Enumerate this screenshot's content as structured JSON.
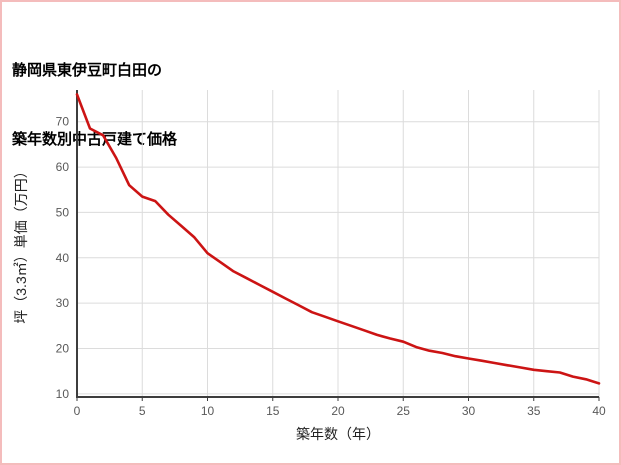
{
  "page": {
    "title_line1": "静岡県東伊豆町白田の",
    "title_line2": "築年数別中古戸建て価格"
  },
  "chart_data": {
    "type": "line",
    "title": "静岡県東伊豆町白田の築年数別中古戸建て価格",
    "xlabel": "築年数（年）",
    "ylabel": "坪（3.3㎡）単価（万円）",
    "x": [
      0,
      1,
      2,
      3,
      4,
      5,
      6,
      7,
      8,
      9,
      10,
      11,
      12,
      13,
      14,
      15,
      16,
      17,
      18,
      19,
      20,
      21,
      22,
      23,
      24,
      25,
      26,
      27,
      28,
      29,
      30,
      31,
      32,
      33,
      34,
      35,
      36,
      37,
      38,
      39,
      40
    ],
    "values": [
      76,
      68.5,
      67,
      62,
      56,
      53.5,
      52.5,
      49.5,
      47,
      44.5,
      41,
      39,
      37,
      35.5,
      34,
      32.5,
      31,
      29.5,
      28,
      27,
      26,
      25,
      24,
      23,
      22.2,
      21.5,
      20.3,
      19.5,
      19,
      18.3,
      17.8,
      17.3,
      16.8,
      16.3,
      15.8,
      15.3,
      15,
      14.7,
      13.8,
      13.2,
      12.3
    ],
    "xlim": [
      0,
      40
    ],
    "ylim": [
      9.3,
      77
    ],
    "xticks": [
      0,
      5,
      10,
      15,
      20,
      25,
      30,
      35,
      40
    ],
    "yticks": [
      10,
      20,
      30,
      40,
      50,
      60,
      70
    ],
    "grid": true,
    "legend": false,
    "color": "#cc1414"
  },
  "colors": {
    "line": "#cc1414",
    "grid": "#dcdcdc",
    "axis": "#3d3d3d",
    "tick_label": "#595959",
    "axis_title": "#222222",
    "title": "#000000",
    "page_border": "#f4bcbc"
  }
}
